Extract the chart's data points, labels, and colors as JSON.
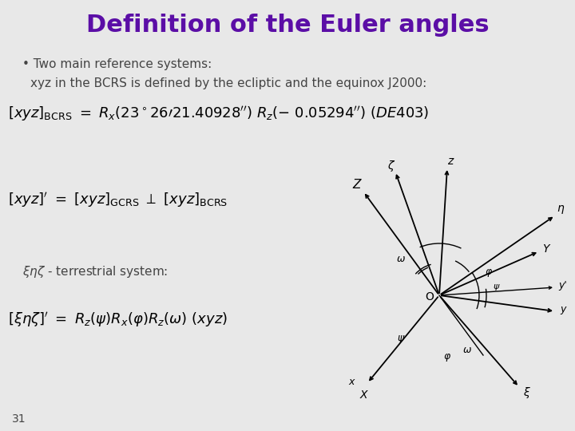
{
  "title": "Definition of the Euler angles",
  "title_color": "#5B0EA6",
  "title_fontsize": 22,
  "bg_color": "#E8E8E8",
  "bullet1": "• Two main reference systems:",
  "bullet2": "   xyz in the BCRS is defined by the ecliptic and the equinox J2000:",
  "eq1_lhs": "[xyz]",
  "eq1_sub_lhs": "BCRS",
  "eq1_mid": "=",
  "eq1_rhs": "R_x(23°26'21.40928\")R_z(− 0.05294\")(DE403)",
  "eq2": "[xyz]' = [xyz]_{GCRS}  ⊥  [xyz]_{BCRS}",
  "bullet3": "ξηζ - terrestrial system:",
  "eq3": "[ξηζ]' = R_z(ψ)R_x(φ)R_z(ω)(xyz)",
  "page_num": "31",
  "text_color": "#333333",
  "math_color": "#000000"
}
